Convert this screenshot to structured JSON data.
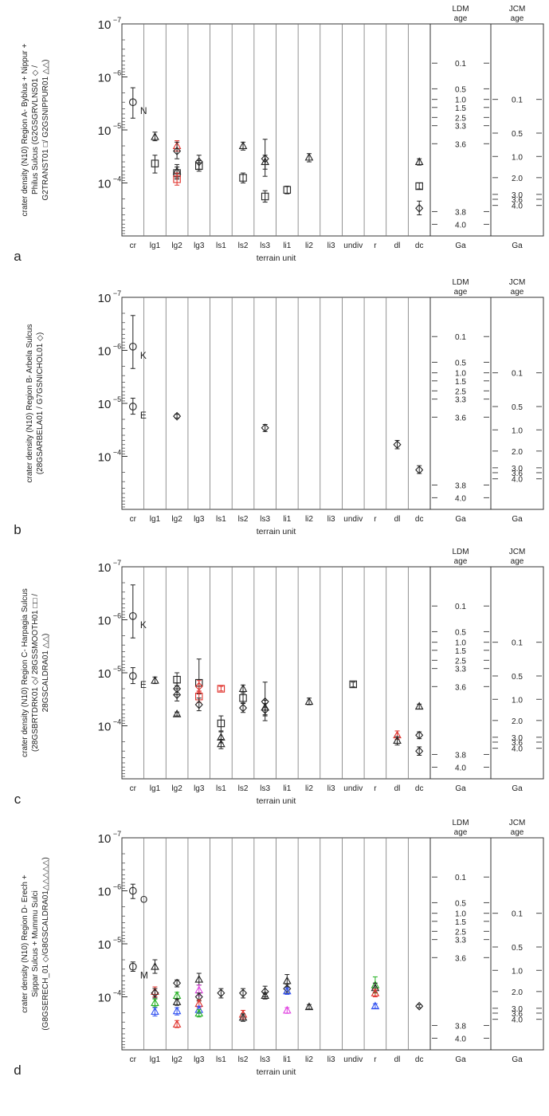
{
  "figure": {
    "xlabel": "terrain unit",
    "categories": [
      "cr",
      "lg1",
      "lg2",
      "lg3",
      "ls1",
      "ls2",
      "ls3",
      "li1",
      "li2",
      "li3",
      "undiv",
      "r",
      "dl",
      "dc"
    ],
    "y_ticks": [
      "10",
      "10",
      "10",
      "10",
      "10"
    ],
    "y_tick_exponents": [
      "−7",
      "−6",
      "−5",
      "−4",
      ""
    ],
    "ldm_header": [
      "LDM",
      "age"
    ],
    "jcm_header": [
      "JCM",
      "age"
    ],
    "age_unit": "Ga",
    "ldm_age_labels": [
      "0.1",
      "0.5",
      "1.0",
      "1.5",
      "2.5",
      "3.3",
      "3.6",
      "3.8",
      "4.0"
    ],
    "jcm_age_labels": [
      "0.1",
      "0.5",
      "1.0",
      "2.0",
      "3.0",
      "3.6",
      "4.0"
    ],
    "colors": {
      "black": "#222222",
      "red": "#e0302a",
      "green": "#22b020",
      "blue": "#3050f0",
      "magenta": "#e040e0"
    }
  },
  "chart_data": [
    {
      "type": "scatter",
      "panel_letter": "a",
      "ylabel_lines": [
        "crater density (N10) Region A- Byblus + Nippur +",
        "Philus Sulcus (G2GSGRVLNS01 ◇ /",
        "G2TRANST01 □/ G2GSNIPPUR01 △△)"
      ],
      "yscale": "log",
      "ylim": [
        1e-07,
        0.001
      ],
      "annotations": [
        {
          "category": "cr",
          "y": 3e-06,
          "text": "N"
        }
      ],
      "points": [
        {
          "cat": "cr",
          "y": 3e-06,
          "lo": 1.6e-06,
          "hi": 6e-06,
          "marker": "circle",
          "color": "black"
        },
        {
          "cat": "lg1",
          "y": 1.35e-05,
          "lo": 1.1e-05,
          "hi": 1.6e-05,
          "marker": "triangle",
          "color": "black"
        },
        {
          "cat": "lg1",
          "y": 4.3e-05,
          "lo": 3e-05,
          "hi": 6.5e-05,
          "marker": "square",
          "color": "black"
        },
        {
          "cat": "lg2",
          "y": 2e-05,
          "lo": 1.6e-05,
          "hi": 2.5e-05,
          "marker": "triangle",
          "color": "red"
        },
        {
          "cat": "lg2",
          "y": 2.5e-05,
          "lo": 1.7e-05,
          "hi": 3.5e-05,
          "marker": "diamond",
          "color": "black"
        },
        {
          "cat": "lg2",
          "y": 6e-05,
          "lo": 4.5e-05,
          "hi": 8e-05,
          "marker": "triangle",
          "color": "black"
        },
        {
          "cat": "lg2",
          "y": 6.5e-05,
          "lo": 5e-05,
          "hi": 8.5e-05,
          "marker": "square",
          "color": "black"
        },
        {
          "cat": "lg2",
          "y": 8.5e-05,
          "lo": 6.5e-05,
          "hi": 0.00011,
          "marker": "square",
          "color": "red"
        },
        {
          "cat": "lg3",
          "y": 4e-05,
          "lo": 3e-05,
          "hi": 5.5e-05,
          "marker": "diamond",
          "color": "black"
        },
        {
          "cat": "lg3",
          "y": 4.8e-05,
          "lo": 3.8e-05,
          "hi": 6e-05,
          "marker": "square",
          "color": "black"
        },
        {
          "cat": "ls2",
          "y": 2e-05,
          "lo": 1.7e-05,
          "hi": 2.4e-05,
          "marker": "triangle",
          "color": "black"
        },
        {
          "cat": "ls2",
          "y": 8e-05,
          "lo": 6.5e-05,
          "hi": 0.0001,
          "marker": "square",
          "color": "black"
        },
        {
          "cat": "ls3",
          "y": 3.5e-05,
          "lo": 1.5e-05,
          "hi": 7.5e-05,
          "marker": "diamond",
          "color": "black"
        },
        {
          "cat": "ls3",
          "y": 4e-05,
          "lo": 3e-05,
          "hi": 5.5e-05,
          "marker": "triangle",
          "color": "black"
        },
        {
          "cat": "ls3",
          "y": 0.00018,
          "lo": 0.00014,
          "hi": 0.00023,
          "marker": "square",
          "color": "black"
        },
        {
          "cat": "li1",
          "y": 0.000135,
          "lo": 0.000115,
          "hi": 0.00016,
          "marker": "square",
          "color": "black"
        },
        {
          "cat": "li2",
          "y": 3.3e-05,
          "lo": 2.8e-05,
          "hi": 4e-05,
          "marker": "triangle",
          "color": "black"
        },
        {
          "cat": "dc",
          "y": 4e-05,
          "lo": 3.5e-05,
          "hi": 4.6e-05,
          "marker": "triangle",
          "color": "black"
        },
        {
          "cat": "dc",
          "y": 0.000115,
          "lo": 0.0001,
          "hi": 0.00013,
          "marker": "square",
          "color": "black"
        },
        {
          "cat": "dc",
          "y": 0.0003,
          "lo": 0.00022,
          "hi": 0.0004,
          "marker": "diamond",
          "color": "black"
        }
      ]
    },
    {
      "type": "scatter",
      "panel_letter": "b",
      "ylabel_lines": [
        "crater density (N10) Region B- Arbela Sulcus",
        "(28GSARBELA01 / G7GSNICHOL01 ◇)"
      ],
      "yscale": "log",
      "ylim": [
        1e-07,
        0.001
      ],
      "annotations": [
        {
          "category": "cr",
          "y": 8.5e-07,
          "text": "K"
        },
        {
          "category": "cr",
          "y": 1.15e-05,
          "text": "E"
        }
      ],
      "points": [
        {
          "cat": "cr",
          "y": 8.5e-07,
          "lo": 2.2e-07,
          "hi": 2.2e-06,
          "marker": "circle",
          "color": "black"
        },
        {
          "cat": "cr",
          "y": 1.15e-05,
          "lo": 8e-06,
          "hi": 1.6e-05,
          "marker": "circle",
          "color": "black"
        },
        {
          "cat": "lg2",
          "y": 1.75e-05,
          "lo": 1.6e-05,
          "hi": 1.9e-05,
          "marker": "diamond",
          "color": "black"
        },
        {
          "cat": "ls3",
          "y": 2.9e-05,
          "lo": 2.5e-05,
          "hi": 3.4e-05,
          "marker": "diamond",
          "color": "black"
        },
        {
          "cat": "dl",
          "y": 6e-05,
          "lo": 5e-05,
          "hi": 7.2e-05,
          "marker": "diamond",
          "color": "black"
        },
        {
          "cat": "dc",
          "y": 0.00018,
          "lo": 0.00015,
          "hi": 0.00021,
          "marker": "diamond",
          "color": "black"
        }
      ]
    },
    {
      "type": "scatter",
      "panel_letter": "c",
      "ylabel_lines": [
        "crater density (N10) Region C- Harpagia Sulcus",
        "(28GSBRTDRK01 ◇/ 28GSSMOOTH01 □□ /",
        "28GSCALDRA01 △△)"
      ],
      "yscale": "log",
      "ylim": [
        1e-07,
        0.001
      ],
      "annotations": [
        {
          "category": "cr",
          "y": 8.5e-07,
          "text": "K"
        },
        {
          "category": "cr",
          "y": 1.15e-05,
          "text": "E"
        }
      ],
      "points": [
        {
          "cat": "cr",
          "y": 8.5e-07,
          "lo": 2.2e-07,
          "hi": 2.2e-06,
          "marker": "circle",
          "color": "black"
        },
        {
          "cat": "cr",
          "y": 1.15e-05,
          "lo": 8e-06,
          "hi": 1.6e-05,
          "marker": "circle",
          "color": "black"
        },
        {
          "cat": "lg1",
          "y": 1.4e-05,
          "lo": 1.2e-05,
          "hi": 1.6e-05,
          "marker": "triangle",
          "color": "black"
        },
        {
          "cat": "lg2",
          "y": 1.35e-05,
          "lo": 1e-05,
          "hi": 1.75e-05,
          "marker": "square",
          "color": "black"
        },
        {
          "cat": "lg2",
          "y": 2e-05,
          "lo": 1.55e-05,
          "hi": 2.6e-05,
          "marker": "diamond",
          "color": "black"
        },
        {
          "cat": "lg2",
          "y": 2.6e-05,
          "lo": 2e-05,
          "hi": 3.4e-05,
          "marker": "diamond",
          "color": "black"
        },
        {
          "cat": "lg2",
          "y": 6e-05,
          "lo": 5.5e-05,
          "hi": 6.5e-05,
          "marker": "triangle",
          "color": "black"
        },
        {
          "cat": "lg3",
          "y": 1.55e-05,
          "lo": 5.5e-06,
          "hi": 2.5e-05,
          "marker": "square",
          "color": "black"
        },
        {
          "cat": "lg3",
          "y": 1.8e-05,
          "lo": 1.4e-05,
          "hi": 2.3e-05,
          "marker": "diamond",
          "color": "red"
        },
        {
          "cat": "lg3",
          "y": 2.8e-05,
          "lo": 2.2e-05,
          "hi": 3.6e-05,
          "marker": "square",
          "color": "red"
        },
        {
          "cat": "lg3",
          "y": 4e-05,
          "lo": 3e-05,
          "hi": 5.2e-05,
          "marker": "diamond",
          "color": "black"
        },
        {
          "cat": "ls1",
          "y": 2e-05,
          "lo": 1.8e-05,
          "hi": 2.2e-05,
          "marker": "square",
          "color": "red"
        },
        {
          "cat": "ls1",
          "y": 9e-05,
          "lo": 6.5e-05,
          "hi": 0.000125,
          "marker": "square",
          "color": "black"
        },
        {
          "cat": "ls1",
          "y": 0.000165,
          "lo": 0.00013,
          "hi": 0.00021,
          "marker": "triangle",
          "color": "black"
        },
        {
          "cat": "ls1",
          "y": 0.00022,
          "lo": 0.00018,
          "hi": 0.00027,
          "marker": "triangle",
          "color": "black"
        },
        {
          "cat": "ls2",
          "y": 2e-05,
          "lo": 1.7e-05,
          "hi": 2.4e-05,
          "marker": "triangle",
          "color": "black"
        },
        {
          "cat": "ls2",
          "y": 3e-05,
          "lo": 2.4e-05,
          "hi": 3.7e-05,
          "marker": "square",
          "color": "black"
        },
        {
          "cat": "ls2",
          "y": 4.6e-05,
          "lo": 3.8e-05,
          "hi": 5.6e-05,
          "marker": "diamond",
          "color": "black"
        },
        {
          "cat": "ls3",
          "y": 3.5e-05,
          "lo": 1.5e-05,
          "hi": 8e-05,
          "marker": "diamond",
          "color": "black"
        },
        {
          "cat": "ls3",
          "y": 4.5e-05,
          "lo": 3.3e-05,
          "hi": 6.2e-05,
          "marker": "triangle",
          "color": "black"
        },
        {
          "cat": "ls3",
          "y": 5e-05,
          "lo": 3.8e-05,
          "hi": 6.5e-05,
          "marker": "diamond",
          "color": "black"
        },
        {
          "cat": "li2",
          "y": 3.5e-05,
          "lo": 3e-05,
          "hi": 4e-05,
          "marker": "triangle",
          "color": "black"
        },
        {
          "cat": "undiv",
          "y": 1.65e-05,
          "lo": 1.5e-05,
          "hi": 1.85e-05,
          "marker": "square",
          "color": "black"
        },
        {
          "cat": "dl",
          "y": 0.00015,
          "lo": 0.000125,
          "hi": 0.00018,
          "marker": "triangle",
          "color": "red"
        },
        {
          "cat": "dl",
          "y": 0.00019,
          "lo": 0.00016,
          "hi": 0.00023,
          "marker": "triangle",
          "color": "black"
        },
        {
          "cat": "dc",
          "y": 4.3e-05,
          "lo": 3.9e-05,
          "hi": 4.8e-05,
          "marker": "triangle",
          "color": "black"
        },
        {
          "cat": "dc",
          "y": 0.00015,
          "lo": 0.00013,
          "hi": 0.000175,
          "marker": "diamond",
          "color": "black"
        },
        {
          "cat": "dc",
          "y": 0.0003,
          "lo": 0.00025,
          "hi": 0.00036,
          "marker": "diamond",
          "color": "black"
        }
      ]
    },
    {
      "type": "scatter",
      "panel_letter": "d",
      "ylabel_lines": [
        "crater density (N10) Region D- Erech +",
        "Sippar Sulcus + Mummu Sulci",
        "(G8GSERECH_01 ◇/G8GSCALDRA01△△△△△)"
      ],
      "yscale": "log",
      "ylim": [
        1e-07,
        0.001
      ],
      "annotations": [
        {
          "category": "cr",
          "y": 1e-06,
          "text": "O"
        },
        {
          "category": "cr",
          "y": 2.7e-05,
          "text": "M"
        }
      ],
      "points": [
        {
          "cat": "cr",
          "y": 1e-06,
          "lo": 7.5e-07,
          "hi": 1.4e-06,
          "marker": "circle",
          "color": "black"
        },
        {
          "cat": "cr",
          "y": 2.7e-05,
          "lo": 2.2e-05,
          "hi": 3.3e-05,
          "marker": "circle",
          "color": "black"
        },
        {
          "cat": "lg1",
          "y": 2.7e-05,
          "lo": 2e-05,
          "hi": 3.6e-05,
          "marker": "triangle",
          "color": "black"
        },
        {
          "cat": "lg1",
          "y": 8e-05,
          "lo": 6.5e-05,
          "hi": 0.0001,
          "marker": "triangle",
          "color": "red"
        },
        {
          "cat": "lg1",
          "y": 8.5e-05,
          "lo": 7e-05,
          "hi": 0.000105,
          "marker": "diamond",
          "color": "black"
        },
        {
          "cat": "lg1",
          "y": 0.00013,
          "lo": 0.00011,
          "hi": 0.000155,
          "marker": "triangle",
          "color": "green"
        },
        {
          "cat": "lg1",
          "y": 0.00019,
          "lo": 0.00016,
          "hi": 0.00023,
          "marker": "triangle",
          "color": "blue"
        },
        {
          "cat": "lg2",
          "y": 5.5e-05,
          "lo": 4.8e-05,
          "hi": 6.5e-05,
          "marker": "diamond",
          "color": "black"
        },
        {
          "cat": "lg2",
          "y": 9.5e-05,
          "lo": 8.2e-05,
          "hi": 0.00011,
          "marker": "triangle",
          "color": "green"
        },
        {
          "cat": "lg2",
          "y": 0.000125,
          "lo": 0.00011,
          "hi": 0.000145,
          "marker": "triangle",
          "color": "black"
        },
        {
          "cat": "lg2",
          "y": 0.000185,
          "lo": 0.00016,
          "hi": 0.00022,
          "marker": "triangle",
          "color": "blue"
        },
        {
          "cat": "lg2",
          "y": 0.00033,
          "lo": 0.00028,
          "hi": 0.00038,
          "marker": "triangle",
          "color": "red"
        },
        {
          "cat": "lg3",
          "y": 4.7e-05,
          "lo": 3.6e-05,
          "hi": 6e-05,
          "marker": "triangle",
          "color": "black"
        },
        {
          "cat": "lg3",
          "y": 7.5e-05,
          "lo": 6e-05,
          "hi": 9.5e-05,
          "marker": "triangle",
          "color": "magenta"
        },
        {
          "cat": "lg3",
          "y": 0.0001,
          "lo": 8.5e-05,
          "hi": 0.00012,
          "marker": "diamond",
          "color": "black"
        },
        {
          "cat": "lg3",
          "y": 0.000135,
          "lo": 0.000115,
          "hi": 0.00016,
          "marker": "triangle",
          "color": "red"
        },
        {
          "cat": "lg3",
          "y": 0.000175,
          "lo": 0.00015,
          "hi": 0.000205,
          "marker": "triangle",
          "color": "blue"
        },
        {
          "cat": "lg3",
          "y": 0.000205,
          "lo": 0.000175,
          "hi": 0.00024,
          "marker": "triangle",
          "color": "green"
        },
        {
          "cat": "ls1",
          "y": 8.5e-05,
          "lo": 7e-05,
          "hi": 0.000105,
          "marker": "diamond",
          "color": "black"
        },
        {
          "cat": "ls2",
          "y": 8.5e-05,
          "lo": 7e-05,
          "hi": 0.000105,
          "marker": "diamond",
          "color": "black"
        },
        {
          "cat": "ls2",
          "y": 0.000215,
          "lo": 0.00018,
          "hi": 0.00026,
          "marker": "triangle",
          "color": "red"
        },
        {
          "cat": "ls2",
          "y": 0.000245,
          "lo": 0.00021,
          "hi": 0.00029,
          "marker": "triangle",
          "color": "black"
        },
        {
          "cat": "ls3",
          "y": 8e-05,
          "lo": 6.3e-05,
          "hi": 0.0001,
          "marker": "diamond",
          "color": "black"
        },
        {
          "cat": "ls3",
          "y": 9.5e-05,
          "lo": 8.3e-05,
          "hi": 0.00011,
          "marker": "triangle",
          "color": "black"
        },
        {
          "cat": "li1",
          "y": 5e-05,
          "lo": 3.8e-05,
          "hi": 6.5e-05,
          "marker": "triangle",
          "color": "black"
        },
        {
          "cat": "li1",
          "y": 7e-05,
          "lo": 5.8e-05,
          "hi": 8.5e-05,
          "marker": "diamond",
          "color": "black"
        },
        {
          "cat": "li1",
          "y": 7.8e-05,
          "lo": 6.8e-05,
          "hi": 9e-05,
          "marker": "triangle",
          "color": "blue"
        },
        {
          "cat": "li1",
          "y": 0.00018,
          "lo": 0.00016,
          "hi": 0.000205,
          "marker": "triangle",
          "color": "magenta"
        },
        {
          "cat": "li2",
          "y": 0.000155,
          "lo": 0.00014,
          "hi": 0.00017,
          "marker": "triangle",
          "color": "black"
        },
        {
          "cat": "r",
          "y": 6e-05,
          "lo": 4.2e-05,
          "hi": 8.5e-05,
          "marker": "triangle",
          "color": "green"
        },
        {
          "cat": "r",
          "y": 6.8e-05,
          "lo": 5.5e-05,
          "hi": 8.2e-05,
          "marker": "triangle",
          "color": "black"
        },
        {
          "cat": "r",
          "y": 8.5e-05,
          "lo": 7.2e-05,
          "hi": 0.0001,
          "marker": "triangle",
          "color": "red"
        },
        {
          "cat": "r",
          "y": 0.00015,
          "lo": 0.000135,
          "hi": 0.000165,
          "marker": "triangle",
          "color": "blue"
        },
        {
          "cat": "dc",
          "y": 0.00015,
          "lo": 0.00014,
          "hi": 0.00016,
          "marker": "diamond",
          "color": "black"
        }
      ]
    }
  ]
}
